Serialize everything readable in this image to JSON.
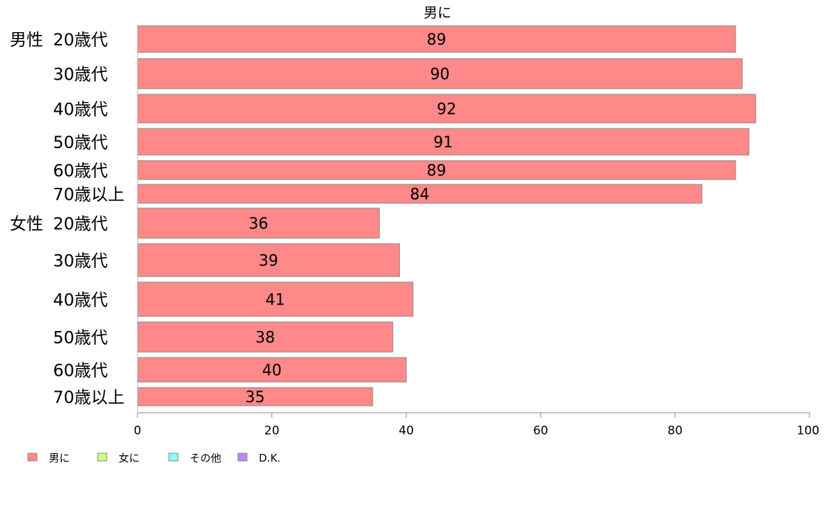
{
  "chart_data": {
    "type": "bar",
    "orientation": "horizontal",
    "title": "男に",
    "xlim": [
      0,
      100
    ],
    "xticks": [
      "0",
      "20",
      "40",
      "60",
      "80",
      "100"
    ],
    "groups": [
      {
        "name": "男性",
        "categories": [
          "20歳代",
          "30歳代",
          "40歳代",
          "50歳代",
          "60歳代",
          "70歳以上"
        ],
        "values": [
          89,
          90,
          92,
          91,
          89,
          84
        ]
      },
      {
        "name": "女性",
        "categories": [
          "20歳代",
          "30歳代",
          "40歳代",
          "50歳代",
          "60歳代",
          "70歳以上"
        ],
        "values": [
          36,
          39,
          41,
          38,
          40,
          35
        ]
      }
    ],
    "legend": {
      "position": "bottom-left",
      "items": [
        {
          "label": "男に",
          "color": "#ff8888"
        },
        {
          "label": "女に",
          "color": "#ccff88"
        },
        {
          "label": "その他",
          "color": "#88ffff"
        },
        {
          "label": "D.K.",
          "color": "#bb88ee"
        }
      ]
    },
    "bar_color": "#ff8888",
    "grid": false
  }
}
